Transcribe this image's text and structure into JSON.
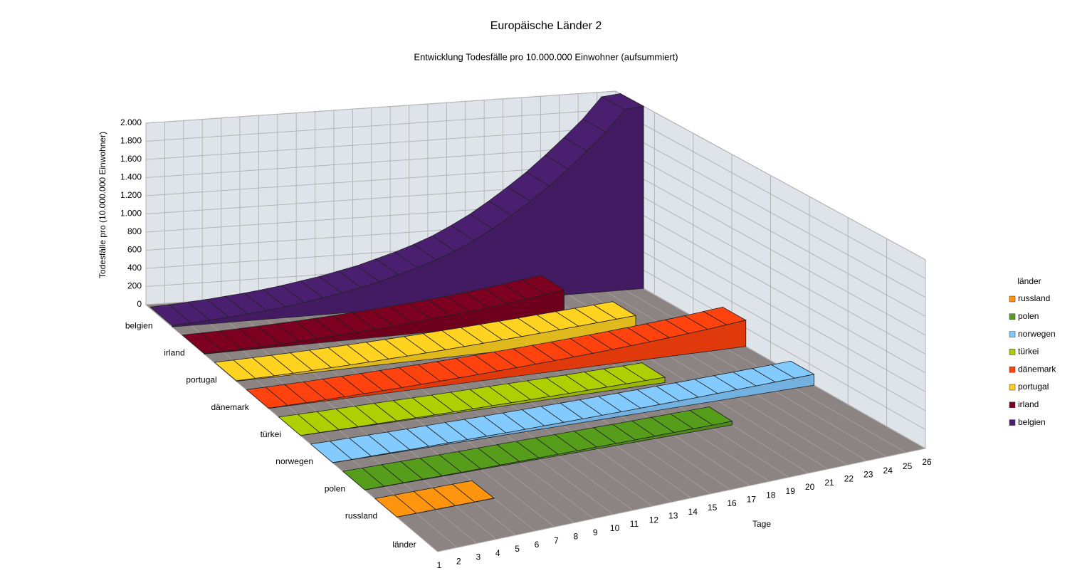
{
  "chart_data": {
    "type": "area",
    "title": "Europäische Länder 2",
    "subtitle": "Entwicklung Todesfälle pro 10.000.000 Einwohner (aufsummiert)",
    "y_label": "Todesfälle pro (10.000.000 Einwohner)",
    "x_label": "Tage",
    "z_label": "länder",
    "legend_title": "länder",
    "legend_position": "right",
    "grid": true,
    "categories": [
      "1",
      "2",
      "3",
      "4",
      "5",
      "6",
      "7",
      "8",
      "9",
      "10",
      "11",
      "12",
      "13",
      "14",
      "15",
      "16",
      "17",
      "18",
      "19",
      "20",
      "21",
      "22",
      "23",
      "24",
      "25",
      "26"
    ],
    "ylim": [
      0,
      2000
    ],
    "yticks": [
      0,
      200,
      400,
      600,
      800,
      {
        "value": 1000,
        "label": "1.000"
      },
      {
        "value": 1200,
        "label": "1.200"
      },
      {
        "value": 1400,
        "label": "1.400"
      },
      {
        "value": 1600,
        "label": "1.600"
      },
      {
        "value": 1800,
        "label": "1.800"
      },
      {
        "value": 2000,
        "label": "2.000"
      }
    ],
    "series": [
      {
        "name": "belgien",
        "color": "#4b1f6f",
        "values": [
          15,
          25,
          40,
          55,
          75,
          95,
          120,
          150,
          185,
          220,
          265,
          310,
          370,
          430,
          500,
          580,
          680,
          790,
          920,
          1060,
          1210,
          1380,
          1560,
          1750,
          1980,
          2000
        ]
      },
      {
        "name": "irland",
        "color": "#7e0021",
        "values": [
          5,
          10,
          15,
          22,
          30,
          40,
          50,
          62,
          75,
          90,
          105,
          122,
          140,
          160,
          180,
          205,
          230,
          260,
          290,
          320,
          null,
          null,
          null,
          null,
          null,
          null
        ]
      },
      {
        "name": "portugal",
        "color": "#ffd320",
        "values": [
          5,
          8,
          12,
          17,
          23,
          30,
          37,
          45,
          54,
          63,
          73,
          84,
          95,
          107,
          120,
          133,
          147,
          161,
          175,
          190,
          205,
          220,
          null,
          null,
          null,
          null
        ]
      },
      {
        "name": "dänemark",
        "color": "#ff420e",
        "values": [
          3,
          6,
          10,
          14,
          19,
          25,
          31,
          38,
          46,
          54,
          63,
          72,
          82,
          93,
          104,
          116,
          128,
          141,
          155,
          170,
          186,
          203,
          221,
          240,
          262,
          285
        ]
      },
      {
        "name": "türkei",
        "color": "#aecf00",
        "values": [
          1,
          2,
          3,
          5,
          7,
          9,
          11,
          13,
          15,
          18,
          21,
          24,
          27,
          30,
          34,
          38,
          42,
          47,
          52,
          57,
          null,
          null,
          null,
          null,
          null,
          null
        ]
      },
      {
        "name": "norwegen",
        "color": "#83caff",
        "values": [
          1,
          2,
          4,
          6,
          8,
          10,
          13,
          16,
          19,
          22,
          26,
          30,
          34,
          38,
          43,
          48,
          53,
          59,
          65,
          71,
          78,
          85,
          92,
          100,
          108,
          117
        ]
      },
      {
        "name": "polen",
        "color": "#579d1c",
        "values": [
          1,
          2,
          3,
          4,
          5,
          6,
          8,
          10,
          12,
          14,
          16,
          18,
          20,
          22,
          24,
          27,
          30,
          33,
          36,
          40,
          null,
          null,
          null,
          null,
          null,
          null
        ]
      },
      {
        "name": "russland",
        "color": "#ff950e",
        "values": [
          1,
          1,
          2,
          2,
          3,
          3,
          null,
          null,
          null,
          null,
          null,
          null,
          null,
          null,
          null,
          null,
          null,
          null,
          null,
          null,
          null,
          null,
          null,
          null,
          null,
          null
        ]
      }
    ]
  }
}
